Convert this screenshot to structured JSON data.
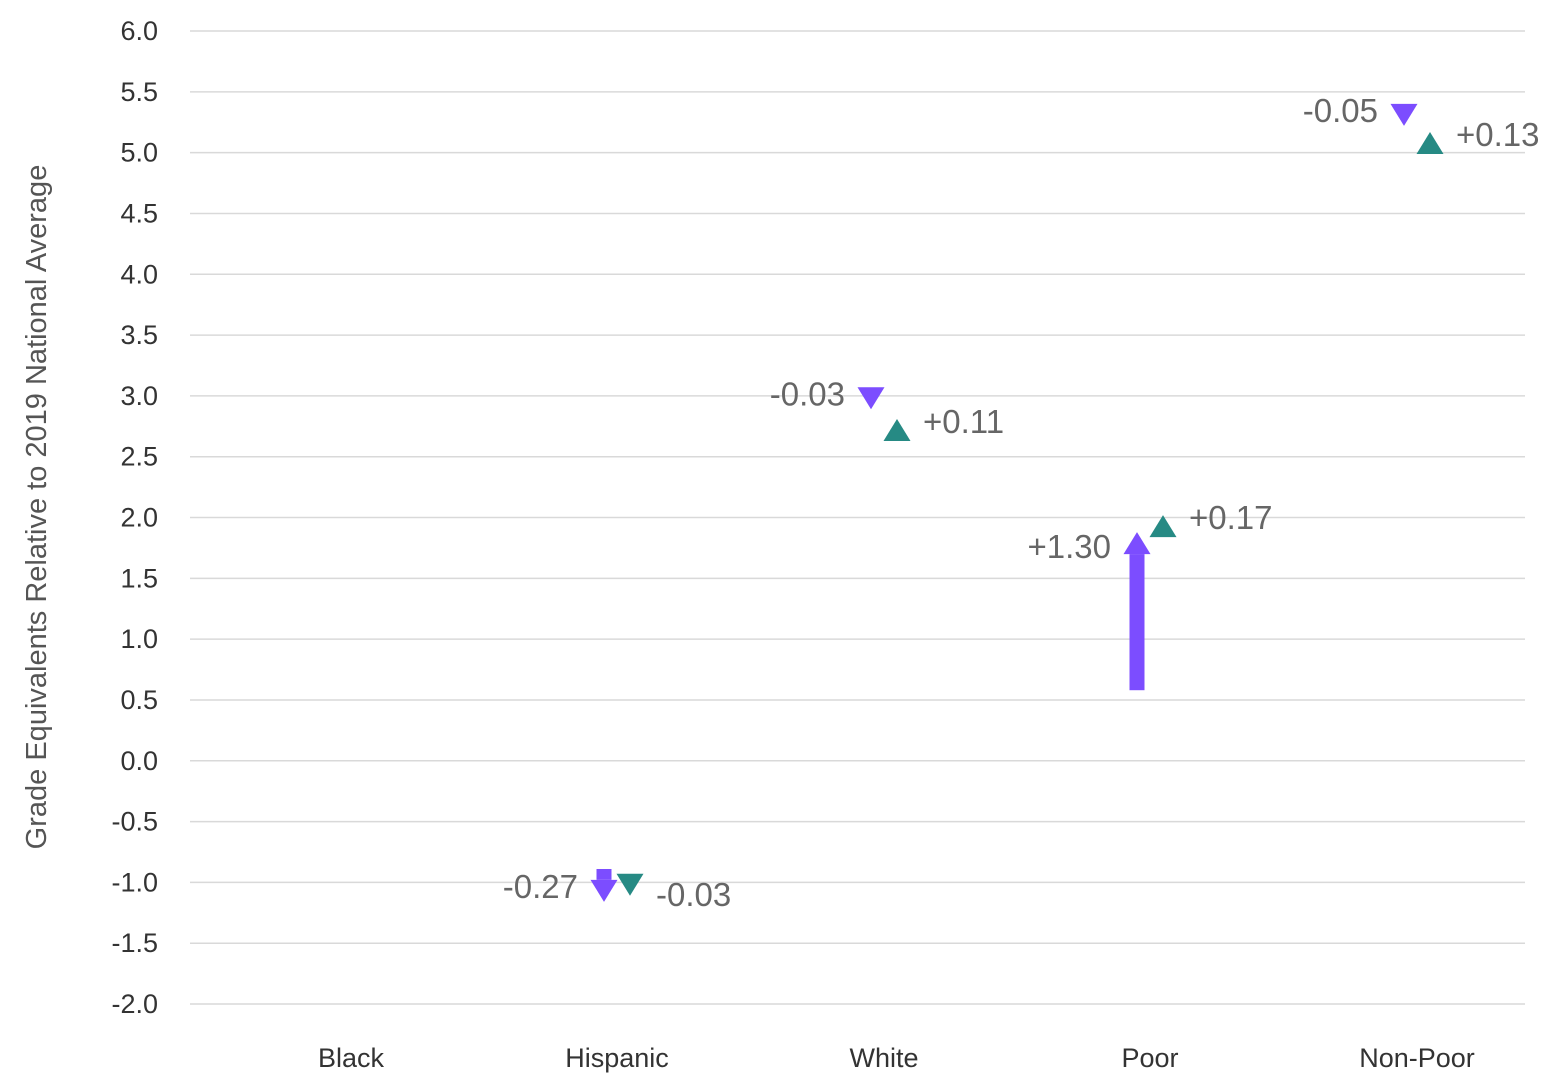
{
  "chart_data": {
    "type": "arrow",
    "ylabel": "Grade Equivalents Relative to 2019 National Average",
    "xlabel": "",
    "ylim": [
      -2.0,
      6.0
    ],
    "y_ticks": [
      "6.0",
      "5.5",
      "5.0",
      "4.5",
      "4.0",
      "3.5",
      "3.0",
      "2.5",
      "2.0",
      "1.5",
      "1.0",
      "0.5",
      "0.0",
      "-0.5",
      "-1.0",
      "-1.5",
      "-2.0"
    ],
    "grid": true,
    "categories": [
      "Black",
      "Hispanic",
      "White",
      "Poor",
      "Non-Poor"
    ],
    "colors": {
      "series1": "#7c4dff",
      "series2": "#268a84"
    },
    "series": [
      {
        "color": "#7c4dff",
        "points": [
          null,
          {
            "start": -0.89,
            "end": -1.16,
            "label": "-0.27"
          },
          {
            "start": 2.92,
            "end": 2.89,
            "label": "-0.03"
          },
          {
            "start": 0.58,
            "end": 1.88,
            "label": "+1.30"
          },
          {
            "start": 5.27,
            "end": 5.22,
            "label": "-0.05"
          }
        ]
      },
      {
        "color": "#268a84",
        "points": [
          null,
          {
            "start": -1.08,
            "end": -1.11,
            "label": "-0.03"
          },
          {
            "start": 2.7,
            "end": 2.81,
            "label": "+0.11"
          },
          {
            "start": 1.85,
            "end": 2.02,
            "label": "+0.17"
          },
          {
            "start": 5.04,
            "end": 5.17,
            "label": "+0.13"
          }
        ]
      }
    ]
  }
}
